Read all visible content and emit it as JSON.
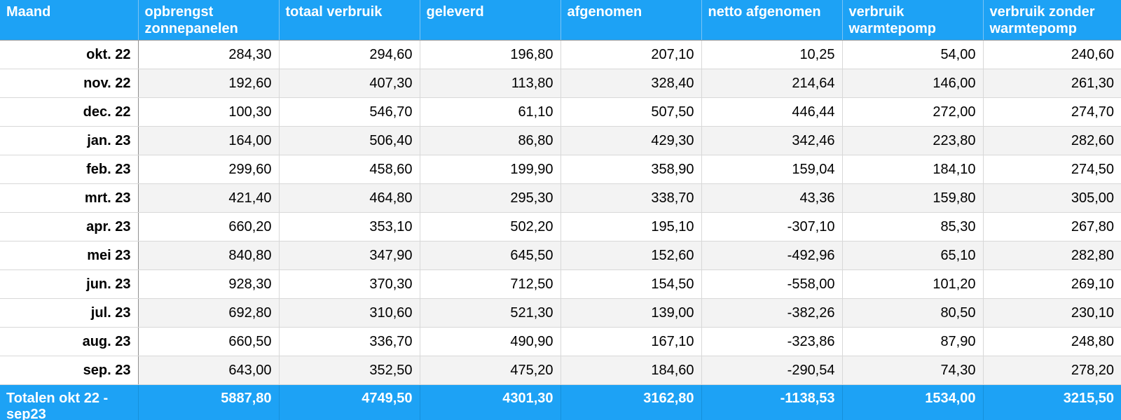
{
  "colors": {
    "header_bg": "#1da2f5",
    "row_alt_bg": "#f3f3f3",
    "border_light": "#d8d8d8",
    "border_dark": "#8f8f8f",
    "header_separator": "#7cc3f3",
    "header_bottom_border": "#9c9c9c",
    "totals_separator": "#1690da",
    "header_text": "#ffffff",
    "body_text": "#000000"
  },
  "table": {
    "columns": [
      {
        "key": "maand",
        "label": "Maand"
      },
      {
        "key": "opbrengst-zonnepanelen",
        "label": "opbrengst zonnepanelen"
      },
      {
        "key": "totaal-verbruik",
        "label": "totaal verbruik"
      },
      {
        "key": "geleverd",
        "label": "geleverd"
      },
      {
        "key": "afgenomen",
        "label": "afgenomen"
      },
      {
        "key": "netto-afgenomen",
        "label": "netto afgenomen"
      },
      {
        "key": "verbruik-warmtepomp",
        "label": "verbruik warmtepomp"
      },
      {
        "key": "verbruik-zonder-warmtepomp",
        "label": "verbruik zonder warmtepomp"
      }
    ],
    "rows": [
      {
        "month": "okt. 22",
        "values": [
          "284,30",
          "294,60",
          "196,80",
          "207,10",
          "10,25",
          "54,00",
          "240,60"
        ]
      },
      {
        "month": "nov. 22",
        "values": [
          "192,60",
          "407,30",
          "113,80",
          "328,40",
          "214,64",
          "146,00",
          "261,30"
        ]
      },
      {
        "month": "dec. 22",
        "values": [
          "100,30",
          "546,70",
          "61,10",
          "507,50",
          "446,44",
          "272,00",
          "274,70"
        ]
      },
      {
        "month": "jan. 23",
        "values": [
          "164,00",
          "506,40",
          "86,80",
          "429,30",
          "342,46",
          "223,80",
          "282,60"
        ]
      },
      {
        "month": "feb. 23",
        "values": [
          "299,60",
          "458,60",
          "199,90",
          "358,90",
          "159,04",
          "184,10",
          "274,50"
        ]
      },
      {
        "month": "mrt. 23",
        "values": [
          "421,40",
          "464,80",
          "295,30",
          "338,70",
          "43,36",
          "159,80",
          "305,00"
        ]
      },
      {
        "month": "apr. 23",
        "values": [
          "660,20",
          "353,10",
          "502,20",
          "195,10",
          "-307,10",
          "85,30",
          "267,80"
        ]
      },
      {
        "month": "mei 23",
        "values": [
          "840,80",
          "347,90",
          "645,50",
          "152,60",
          "-492,96",
          "65,10",
          "282,80"
        ]
      },
      {
        "month": "jun. 23",
        "values": [
          "928,30",
          "370,30",
          "712,50",
          "154,50",
          "-558,00",
          "101,20",
          "269,10"
        ]
      },
      {
        "month": "jul. 23",
        "values": [
          "692,80",
          "310,60",
          "521,30",
          "139,00",
          "-382,26",
          "80,50",
          "230,10"
        ]
      },
      {
        "month": "aug. 23",
        "values": [
          "660,50",
          "336,70",
          "490,90",
          "167,10",
          "-323,86",
          "87,90",
          "248,80"
        ]
      },
      {
        "month": "sep. 23",
        "values": [
          "643,00",
          "352,50",
          "475,20",
          "184,60",
          "-290,54",
          "74,30",
          "278,20"
        ]
      }
    ],
    "totals": {
      "label": "Totalen okt 22 - sep23",
      "values": [
        "5887,80",
        "4749,50",
        "4301,30",
        "3162,80",
        "-1138,53",
        "1534,00",
        "3215,50"
      ]
    }
  }
}
